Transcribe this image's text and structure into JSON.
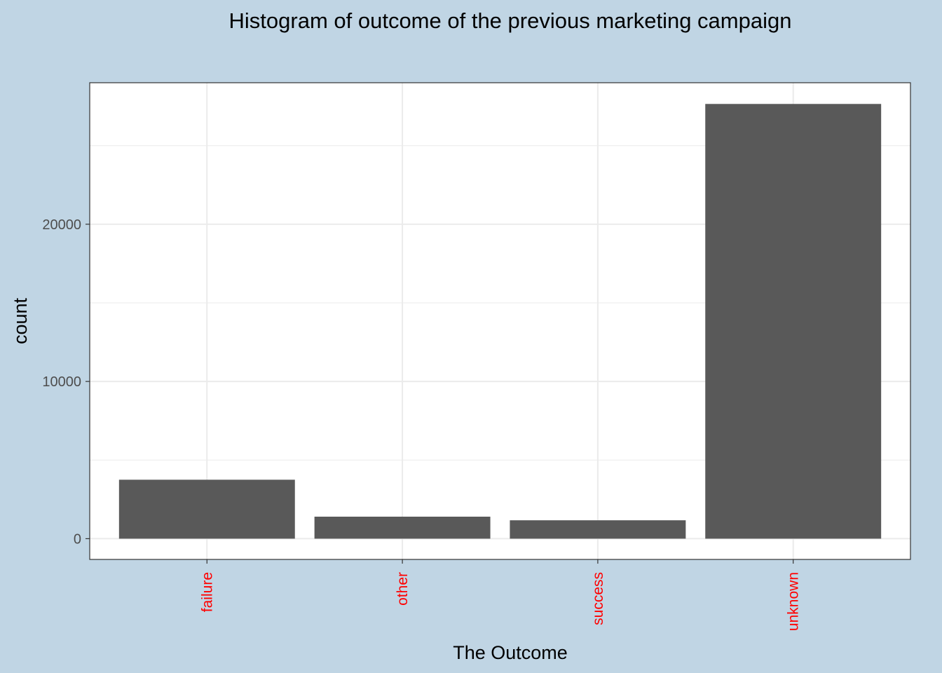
{
  "chart_data": {
    "type": "bar",
    "title": "Histogram of outcome of the previous marketing campaign",
    "xlabel": "The Outcome",
    "ylabel": "count",
    "categories": [
      "failure",
      "other",
      "success",
      "unknown"
    ],
    "values": [
      3750,
      1400,
      1170,
      27650
    ],
    "ylim": [
      -1320,
      29000
    ],
    "yticks": [
      0,
      10000,
      20000
    ],
    "grid": true,
    "x_tick_label_rotation": "vertical",
    "colors": {
      "background": "#c0d5e4",
      "panel": "#ffffff",
      "bar": "#595959",
      "grid": "#ebebeb",
      "x_tick_label": "#ff0000",
      "y_tick_label": "#4d4d4d"
    }
  }
}
